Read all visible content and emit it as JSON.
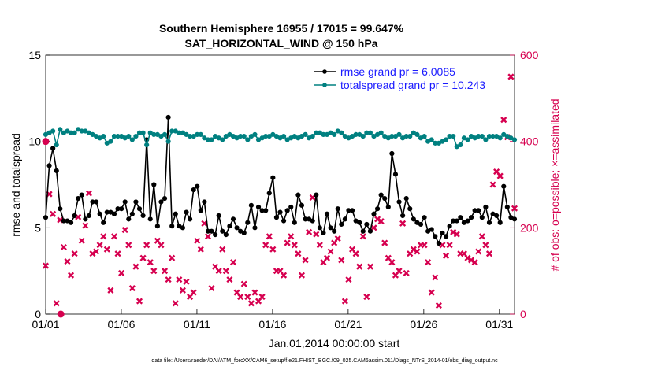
{
  "chart_data": {
    "type": "line",
    "title_line1": "Southern Hemisphere 16955 / 17015 = 99.647%",
    "title_line2": "SAT_HORIZONTAL_WIND @ 150 hPa",
    "xlabel": "Jan.01,2014 00:00:00 start",
    "ylabel_left": "rmse and totalspread",
    "ylabel_right": "# of obs: o=possible; ×=assimilated",
    "xlim": [
      1,
      32
    ],
    "ylim_left": [
      0,
      15
    ],
    "ylim_right": [
      0,
      600
    ],
    "x_ticks": [
      1,
      6,
      11,
      16,
      21,
      26,
      31
    ],
    "x_tick_labels": [
      "01/01",
      "01/06",
      "01/11",
      "01/16",
      "01/21",
      "01/26",
      "01/31"
    ],
    "y_ticks_left": [
      0,
      5,
      10,
      15
    ],
    "y_ticks_right": [
      0,
      200,
      400,
      600
    ],
    "series": [
      {
        "name": "rmse grand pr = 6.0085",
        "color": "#000000",
        "axis": "left",
        "values": [
          5.6,
          8.6,
          9.6,
          8.3,
          6.1,
          5.4,
          5.4,
          5.3,
          5.7,
          6.7,
          6.9,
          5.5,
          5.7,
          6.5,
          6.5,
          5.8,
          5.3,
          5.9,
          5.9,
          5.8,
          6.1,
          6.1,
          6.5,
          5.5,
          5.8,
          6.5,
          6.1,
          5.7,
          10.1,
          5.5,
          7.5,
          5.1,
          6.5,
          6.7,
          11.4,
          5.1,
          5.8,
          5.1,
          5.0,
          5.9,
          5.5,
          7.2,
          7.4,
          6.0,
          6.5,
          4.8,
          4.8,
          4.6,
          5.7,
          4.8,
          4.6,
          5.1,
          5.5,
          5.0,
          4.8,
          4.7,
          5.3,
          6.3,
          5.0,
          6.2,
          6.0,
          6.0,
          7.0,
          7.9,
          5.6,
          5.9,
          5.4,
          6.0,
          6.2,
          5.3,
          6.9,
          6.3,
          5.5,
          5.5,
          5.4,
          6.9,
          5.0,
          4.7,
          5.8,
          5.0,
          4.8,
          6.1,
          5.2,
          5.5,
          6.0,
          6.0,
          5.4,
          5.3,
          4.8,
          5.2,
          4.8,
          5.8,
          6.1,
          6.9,
          6.7,
          6.2,
          9.3,
          8.1,
          6.5,
          5.7,
          6.7,
          6.1,
          5.5,
          5.3,
          5.2,
          5.6,
          4.8,
          4.9,
          4.5,
          4.1,
          4.7,
          4.5,
          5.1,
          5.4,
          5.4,
          5.6,
          5.3,
          5.4,
          5.6,
          6.0,
          6.0,
          5.6,
          6.2,
          5.3,
          5.8,
          5.7,
          5.3,
          7.4,
          6.2,
          5.6,
          5.5
        ]
      },
      {
        "name": "totalspread grand pr = 10.243",
        "color": "#008080",
        "axis": "left",
        "values": [
          10.4,
          10.5,
          10.6,
          9.8,
          10.7,
          10.5,
          10.6,
          10.5,
          10.5,
          10.7,
          10.6,
          10.6,
          10.5,
          10.4,
          10.3,
          10.2,
          10.3,
          9.9,
          10.0,
          10.3,
          10.3,
          10.3,
          10.2,
          10.3,
          10.1,
          10.3,
          10.5,
          10.5,
          9.8,
          10.5,
          10.4,
          10.4,
          10.3,
          10.4,
          10.0,
          10.6,
          10.6,
          10.5,
          10.5,
          10.4,
          10.3,
          10.3,
          10.4,
          10.4,
          10.2,
          10.1,
          10.1,
          10.3,
          10.2,
          10.1,
          10.3,
          10.4,
          10.3,
          10.2,
          10.3,
          10.3,
          10.1,
          10.3,
          10.4,
          10.1,
          10.2,
          10.3,
          10.3,
          10.4,
          10.3,
          10.2,
          10.3,
          10.1,
          10.2,
          10.3,
          10.2,
          10.3,
          10.4,
          10.2,
          10.3,
          10.5,
          10.5,
          10.4,
          10.4,
          10.5,
          10.4,
          10.6,
          10.5,
          10.3,
          10.2,
          10.3,
          10.4,
          10.4,
          10.3,
          10.5,
          10.5,
          10.3,
          10.4,
          10.5,
          10.3,
          10.2,
          10.3,
          10.3,
          10.4,
          10.2,
          10.3,
          10.3,
          10.5,
          10.4,
          10.2,
          10.3,
          10.0,
          10.1,
          9.9,
          9.9,
          10.0,
          10.1,
          10.3,
          10.3,
          9.7,
          9.8,
          10.2,
          10.1,
          10.3,
          10.2,
          10.3,
          10.3,
          10.1,
          10.3,
          10.3,
          10.3,
          10.2,
          10.4,
          10.3,
          10.2,
          10.1
        ]
      }
    ],
    "obs_possible_points": [
      {
        "x": 1.0,
        "y": 400
      },
      {
        "x": 2.0,
        "y": 0
      }
    ],
    "obs_assimilated": {
      "color": "#d6004f",
      "axis": "right",
      "values": [
        112,
        278,
        232,
        25,
        218,
        155,
        122,
        90,
        140,
        225,
        170,
        205,
        280,
        140,
        145,
        160,
        180,
        150,
        55,
        180,
        140,
        95,
        195,
        160,
        60,
        110,
        30,
        130,
        160,
        120,
        100,
        170,
        160,
        100,
        80,
        130,
        25,
        80,
        55,
        75,
        40,
        50,
        170,
        150,
        210,
        180,
        60,
        110,
        100,
        150,
        100,
        80,
        120,
        50,
        40,
        70,
        40,
        25,
        50,
        30,
        40,
        160,
        180,
        150,
        100,
        100,
        90,
        165,
        180,
        160,
        140,
        90,
        125,
        190,
        270,
        185,
        160,
        120,
        130,
        145,
        165,
        175,
        125,
        30,
        80,
        150,
        140,
        110,
        180,
        40,
        110,
        200,
        220,
        215,
        165,
        130,
        120,
        90,
        100,
        210,
        95,
        140,
        150,
        145,
        160,
        160,
        120,
        50,
        85,
        20,
        160,
        135,
        160,
        190,
        185,
        140,
        140,
        130,
        125,
        120,
        145,
        180,
        160,
        140,
        300,
        330,
        320,
        450,
        410,
        550,
        245
      ]
    },
    "legend_position": "top-right",
    "grid": false
  },
  "footer_text": "data file: /Users/raeder/DAI/ATM_forcXX/CAM6_setup/f.e21.FHIST_BGC.f09_025.CAM6assim.011/Diags_NTrS_2014-01/obs_diag_output.nc"
}
